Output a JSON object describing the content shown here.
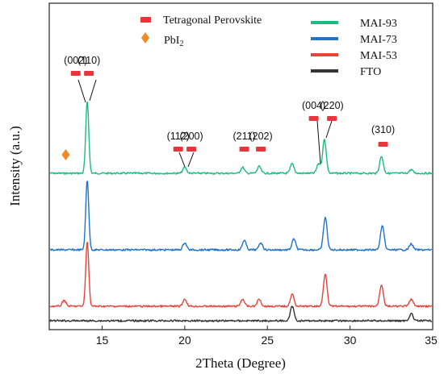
{
  "chart_data": {
    "type": "line",
    "xlabel": "2Theta (Degree)",
    "ylabel": "Intensity (a.u.)",
    "xlim": [
      11.8,
      35
    ],
    "xticks": [
      15,
      20,
      25,
      30,
      35
    ],
    "yticks_shown": false,
    "grid": false,
    "series": [
      {
        "name": "MAI-93",
        "color": "#1abc82",
        "offset": 3,
        "peaks": [
          [
            14.1,
            3.0
          ],
          [
            20.0,
            0.25
          ],
          [
            23.5,
            0.25
          ],
          [
            24.5,
            0.28
          ],
          [
            26.5,
            0.4
          ],
          [
            28.1,
            0.4
          ],
          [
            28.45,
            1.4
          ],
          [
            31.9,
            0.7
          ],
          [
            33.7,
            0.15
          ]
        ]
      },
      {
        "name": "MAI-73",
        "color": "#1f73c8",
        "offset": 2,
        "peaks": [
          [
            14.1,
            2.9
          ],
          [
            20.0,
            0.3
          ],
          [
            23.6,
            0.4
          ],
          [
            24.6,
            0.3
          ],
          [
            26.6,
            0.45
          ],
          [
            28.5,
            1.35
          ],
          [
            31.95,
            1.0
          ],
          [
            33.7,
            0.25
          ]
        ]
      },
      {
        "name": "MAI-53",
        "color": "#e8433a",
        "offset": 1,
        "peaks": [
          [
            12.7,
            0.25
          ],
          [
            14.1,
            2.7
          ],
          [
            20.0,
            0.3
          ],
          [
            23.5,
            0.3
          ],
          [
            24.5,
            0.3
          ],
          [
            26.5,
            0.5
          ],
          [
            28.5,
            1.35
          ],
          [
            31.9,
            0.9
          ],
          [
            33.7,
            0.3
          ]
        ]
      },
      {
        "name": "FTO",
        "color": "#333333",
        "offset": 0,
        "peaks": [
          [
            26.5,
            0.6
          ],
          [
            33.7,
            0.3
          ]
        ]
      }
    ],
    "legend": {
      "placement": "top-right",
      "entries": [
        "MAI-93",
        "MAI-73",
        "MAI-53",
        "FTO"
      ]
    },
    "markers_legend": {
      "placement": "top-center",
      "tetragonal": {
        "label": "Tetragonal  Perovskite",
        "color": "#e8343a"
      },
      "pbi2": {
        "label": "PbI",
        "subscript": "2",
        "color": "#f08a24"
      }
    },
    "annotations": [
      {
        "label": "(002)",
        "x": 13.4
      },
      {
        "label": "(110)",
        "x": 14.2
      },
      {
        "label": "(112)",
        "x": 19.6
      },
      {
        "label": "(200)",
        "x": 20.4
      },
      {
        "label": "(211)",
        "x": 23.6
      },
      {
        "label": "(202)",
        "x": 24.6
      },
      {
        "label": "(004)",
        "x": 27.8
      },
      {
        "label": "(220)",
        "x": 28.9
      },
      {
        "label": "(310)",
        "x": 32.0
      }
    ],
    "pbi2_marker_x": 12.8
  }
}
